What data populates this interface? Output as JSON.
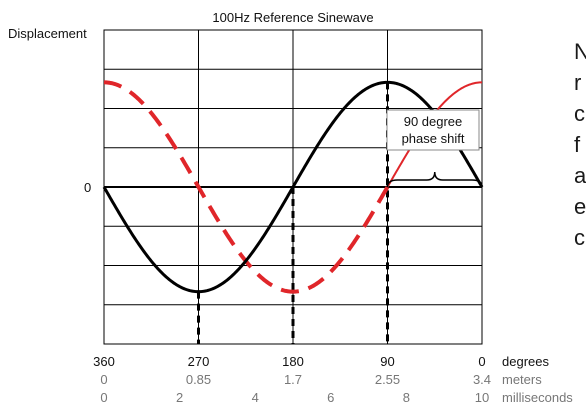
{
  "chart_data": {
    "type": "line",
    "title": "100Hz Reference Sinewave",
    "ylabel": "Displacement",
    "y_zero_label": "0",
    "xlim": [
      360,
      0
    ],
    "ylim": [
      -1.5,
      1.5
    ],
    "grid": true,
    "x_axes": [
      {
        "name": "degrees",
        "ticks": [
          "360",
          "270",
          "180",
          "90",
          "0"
        ]
      },
      {
        "name": "meters",
        "ticks": [
          "0",
          "0.85",
          "1.7",
          "2.55",
          "3.4"
        ]
      },
      {
        "name": "milliseconds",
        "ticks": [
          "0",
          "2",
          "4",
          "6",
          "8",
          "10"
        ]
      }
    ],
    "series": [
      {
        "style": "solid",
        "color": "#000000",
        "function": "sin(x degrees)",
        "amplitude": 1
      },
      {
        "style": "dashed then solid",
        "color": "#e0262a",
        "function": "cos(x degrees)",
        "amplitude": 1
      }
    ],
    "vertical_markers_degrees": [
      270,
      180,
      90
    ],
    "annotation": {
      "text_lines": [
        "90 degree",
        "phase shift"
      ]
    },
    "side_text_fragments": [
      "N",
      "r",
      "c",
      "f",
      "a",
      "e",
      "c"
    ]
  }
}
